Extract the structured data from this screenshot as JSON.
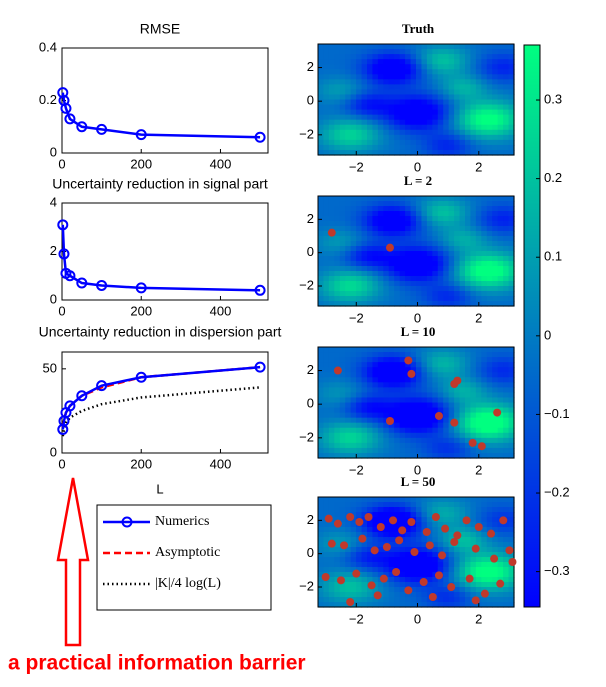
{
  "chart_data": [
    {
      "type": "line",
      "title": "RMSE",
      "x": [
        2,
        5,
        10,
        20,
        50,
        100,
        200,
        500
      ],
      "values": [
        0.23,
        0.2,
        0.17,
        0.13,
        0.1,
        0.09,
        0.07,
        0.06
      ],
      "color": "#0000ff",
      "marker": "o",
      "xlim": [
        0,
        520
      ],
      "xticks": [
        0,
        200,
        400
      ],
      "ylim": [
        0,
        0.4
      ],
      "yticks": [
        0,
        0.2,
        0.4
      ]
    },
    {
      "type": "line",
      "title": "Uncertainty reduction in signal part",
      "x": [
        2,
        5,
        10,
        20,
        50,
        100,
        200,
        500
      ],
      "values": [
        3.1,
        1.9,
        1.1,
        1.0,
        0.7,
        0.6,
        0.5,
        0.4
      ],
      "color": "#0000ff",
      "marker": "o",
      "xlim": [
        0,
        520
      ],
      "xticks": [
        0,
        200,
        400
      ],
      "ylim": [
        0,
        4
      ],
      "yticks": [
        0,
        2,
        4
      ]
    },
    {
      "type": "line",
      "title": "Uncertainty reduction in dispersion part",
      "xlabel": "L",
      "x": [
        2,
        5,
        10,
        20,
        50,
        100,
        200,
        500
      ],
      "series": [
        {
          "name": "Numerics",
          "color": "#0000ff",
          "style": "solid",
          "marker": "o",
          "values": [
            14,
            19,
            24,
            28,
            34,
            40,
            45,
            51
          ]
        },
        {
          "name": "Asymptotic",
          "color": "#ff0000",
          "style": "dashed",
          "values": [
            15,
            20,
            24,
            28,
            34,
            39,
            45,
            51
          ]
        },
        {
          "name": "|K|/4 log(L)",
          "color": "#000000",
          "style": "dotted",
          "values": [
            10,
            14,
            18,
            21,
            25,
            29,
            33,
            39
          ]
        }
      ],
      "xlim": [
        0,
        520
      ],
      "xticks": [
        0,
        200,
        400
      ],
      "ylim": [
        0,
        60
      ],
      "yticks": [
        0,
        50
      ],
      "annotation": "a practical information barrier",
      "annotation_color": "#ff0000"
    },
    {
      "type": "scatter",
      "title": "Truth",
      "x": [],
      "y": [],
      "color": "#c0392b",
      "xlim": [
        -3.25,
        3.15
      ],
      "xticks": [
        {
          "value": -2,
          "label": "−2"
        },
        0,
        2
      ],
      "ylim": [
        -3.2,
        3.4
      ],
      "yticks": [
        {
          "value": -2,
          "label": "−2"
        },
        0,
        2
      ]
    },
    {
      "type": "scatter",
      "title": "L = 2",
      "x": [
        -2.8,
        -0.9
      ],
      "y": [
        1.2,
        0.3
      ],
      "color": "#c0392b",
      "xlim": [
        -3.25,
        3.15
      ],
      "xticks": [
        {
          "value": -2,
          "label": "−2"
        },
        0,
        2
      ],
      "ylim": [
        -3.2,
        3.4
      ],
      "yticks": [
        {
          "value": -2,
          "label": "−2"
        },
        0,
        2
      ]
    },
    {
      "type": "scatter",
      "title": "L = 10",
      "x": [
        -2.6,
        -0.3,
        -0.2,
        1.3,
        1.2,
        -0.9,
        0.7,
        1.2,
        1.8,
        2.1,
        2.6
      ],
      "y": [
        2.0,
        2.6,
        1.8,
        1.4,
        1.2,
        -1.0,
        -0.7,
        -1.1,
        -2.3,
        -2.5,
        -0.5
      ],
      "color": "#c0392b",
      "xlim": [
        -3.25,
        3.15
      ],
      "xticks": [
        {
          "value": -2,
          "label": "−2"
        },
        0,
        2
      ],
      "ylim": [
        -3.2,
        3.4
      ],
      "yticks": [
        {
          "value": -2,
          "label": "−2"
        },
        0,
        2
      ]
    },
    {
      "type": "scatter",
      "title": "L = 50",
      "x": [
        -2.9,
        -2.6,
        -2.2,
        -1.9,
        -1.6,
        -1.2,
        -0.8,
        -0.5,
        -0.2,
        0.3,
        0.6,
        0.9,
        1.3,
        1.6,
        2.0,
        2.4,
        2.8,
        -2.8,
        -2.4,
        -1.8,
        -1.4,
        -1.0,
        -0.6,
        -0.1,
        0.4,
        0.8,
        1.2,
        1.9,
        2.5,
        3.0,
        -3.0,
        -2.5,
        -2.0,
        -1.5,
        -1.1,
        -0.7,
        -0.3,
        0.2,
        0.7,
        1.1,
        1.7,
        2.2,
        2.7,
        0.5,
        -1.3,
        1.9,
        3.1,
        -2.2
      ],
      "y": [
        2.1,
        1.8,
        2.2,
        1.9,
        2.2,
        1.6,
        2.0,
        1.4,
        1.9,
        1.3,
        2.2,
        1.5,
        1.1,
        2.0,
        1.6,
        1.2,
        2.0,
        0.6,
        0.5,
        0.9,
        0.2,
        0.4,
        0.8,
        0.1,
        0.5,
        -0.1,
        0.7,
        0.3,
        -0.3,
        0.2,
        -1.4,
        -1.6,
        -1.2,
        -1.9,
        -1.5,
        -1.1,
        -2.2,
        -1.7,
        -1.3,
        -2.0,
        -1.5,
        -2.4,
        -1.8,
        -2.6,
        -2.5,
        -2.8,
        -0.5,
        -2.9
      ],
      "color": "#c0392b",
      "xlim": [
        -3.25,
        3.15
      ],
      "xticks": [
        {
          "value": -2,
          "label": "−2"
        },
        0,
        2
      ],
      "ylim": [
        -3.2,
        3.4
      ],
      "yticks": [
        {
          "value": -2,
          "label": "−2"
        },
        0,
        2
      ]
    },
    {
      "type": "colorbar",
      "colors": [
        "#0000ff",
        "#00ff80"
      ],
      "ylim": [
        -0.345,
        0.37
      ],
      "yticks": [
        {
          "value": -0.3,
          "label": "−0.3"
        },
        {
          "value": -0.2,
          "label": "−0.2"
        },
        {
          "value": -0.1,
          "label": "−0.1"
        },
        0,
        0.1,
        0.2,
        0.3
      ]
    }
  ]
}
